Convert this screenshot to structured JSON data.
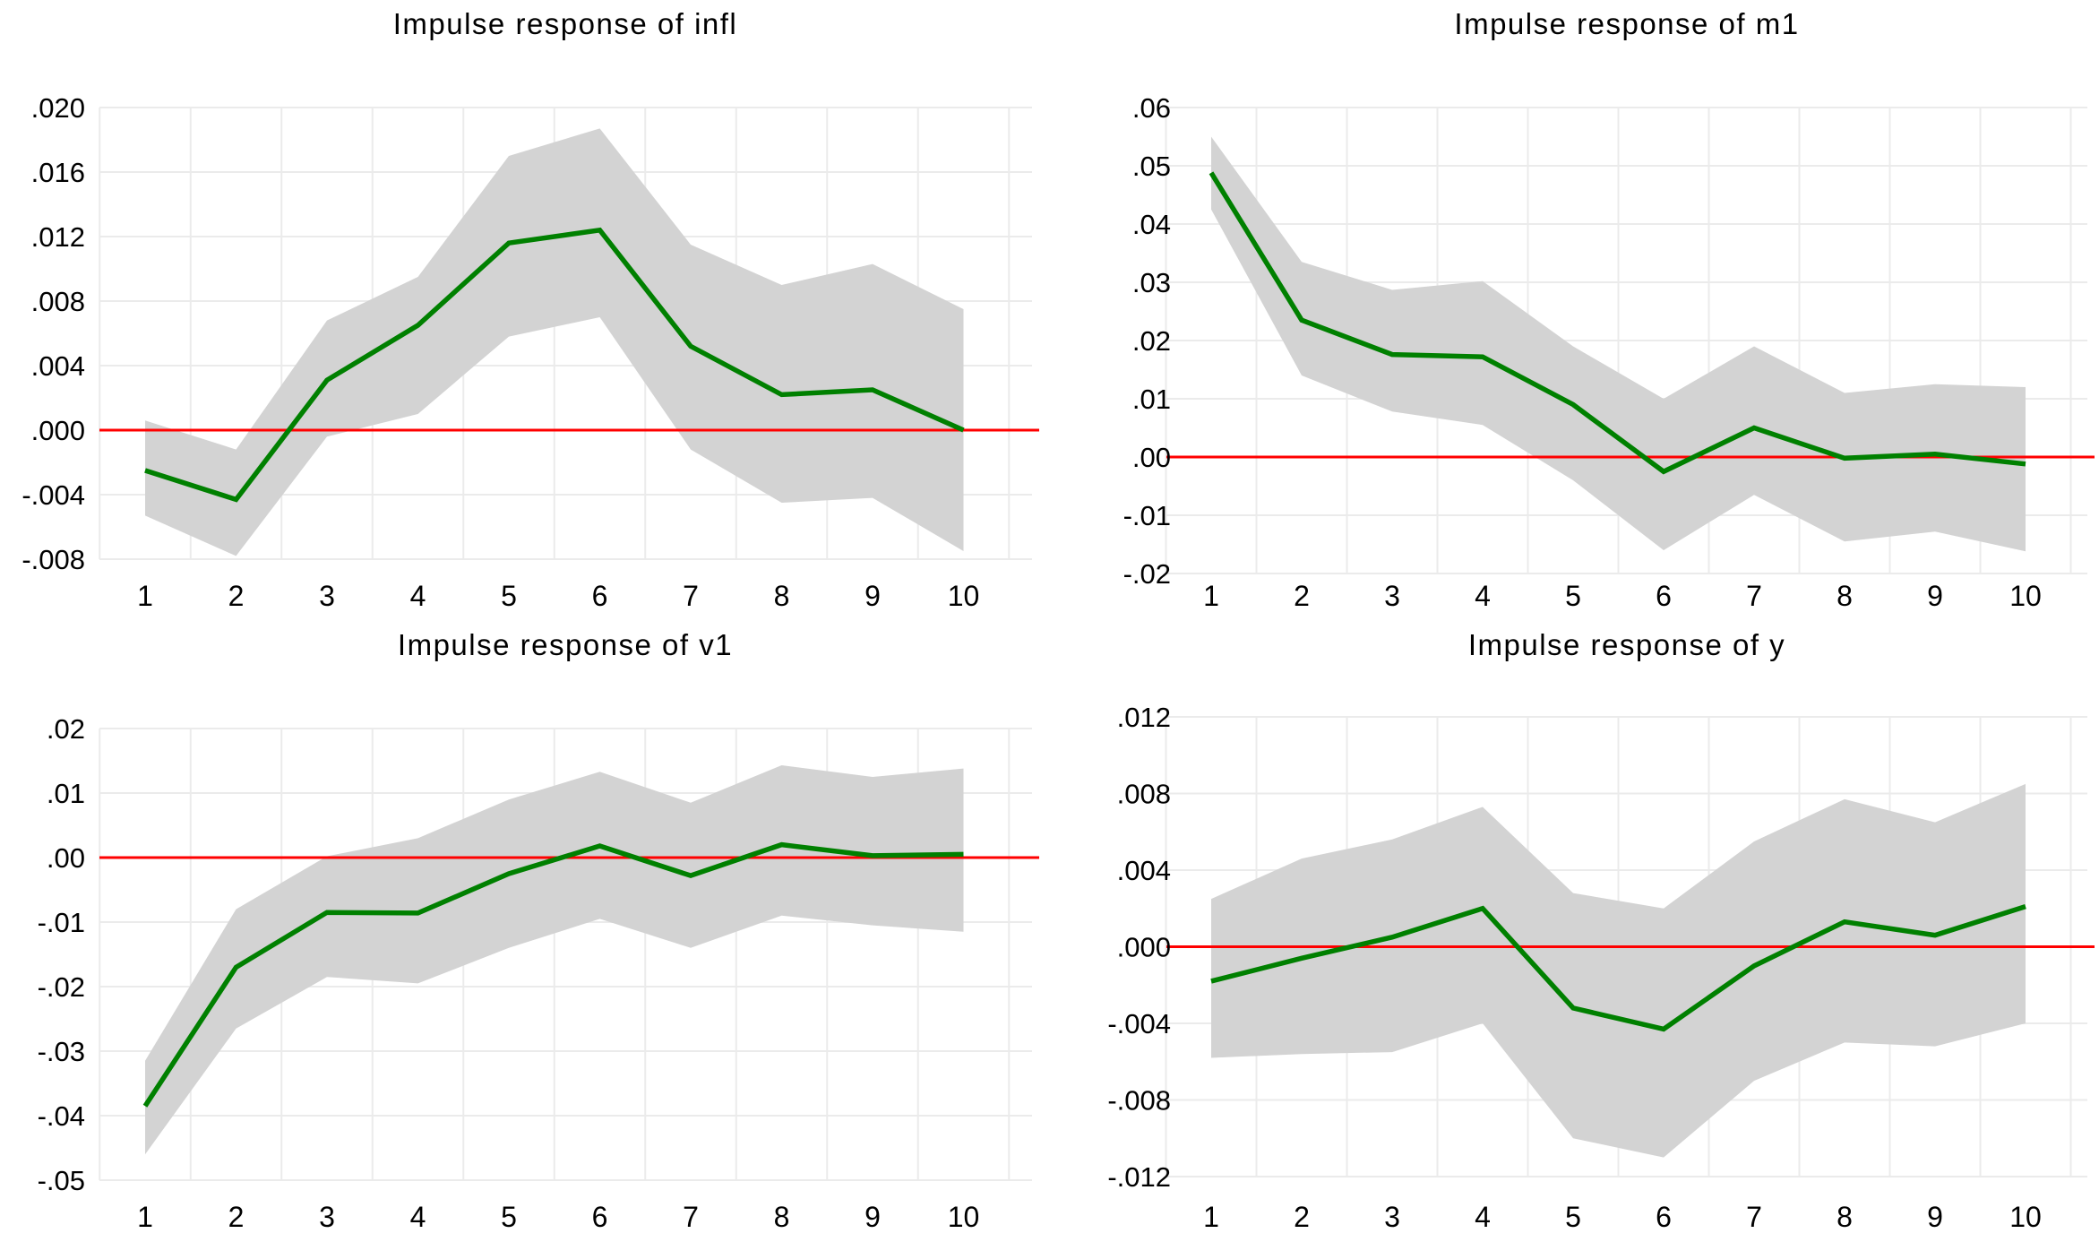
{
  "figure": {
    "kind": "impulse-response-panel",
    "rows": 2,
    "cols": 2,
    "background": "#ffffff"
  },
  "colors": {
    "response_line": "#008000",
    "confidence_band": "#d3d3d3",
    "zero_line": "#ff0000",
    "gridline": "#ebebeb",
    "text": "#000000"
  },
  "chart_data": [
    {
      "type": "line",
      "title": "Impulse response of infl",
      "xlabel": "",
      "ylabel": "",
      "x": [
        1,
        2,
        3,
        4,
        5,
        6,
        7,
        8,
        9,
        10
      ],
      "x_tick_labels": [
        "1",
        "2",
        "3",
        "4",
        "5",
        "6",
        "7",
        "8",
        "9",
        "10"
      ],
      "y_tick_values": [
        0.02,
        0.016,
        0.012,
        0.008,
        0.004,
        0.0,
        -0.004,
        -0.008
      ],
      "y_tick_labels": [
        ".020",
        ".016",
        ".012",
        ".008",
        ".004",
        ".000",
        "-.004",
        "-.008"
      ],
      "ylim": [
        -0.009,
        0.021
      ],
      "xlim": [
        1,
        10
      ],
      "grid": true,
      "legend": "none",
      "zero_line": true,
      "series": [
        {
          "name": "irf",
          "role": "response",
          "color": "#008000",
          "values": [
            -0.0025,
            -0.0043,
            0.0031,
            0.0065,
            0.0116,
            0.0124,
            0.0052,
            0.0022,
            0.0025,
            0.0
          ]
        },
        {
          "name": "ci_upper",
          "role": "band-upper",
          "color": "#d3d3d3",
          "values": [
            0.0006,
            -0.0012,
            0.0068,
            0.0095,
            0.017,
            0.0187,
            0.0115,
            0.009,
            0.0103,
            0.0075
          ]
        },
        {
          "name": "ci_lower",
          "role": "band-lower",
          "color": "#d3d3d3",
          "values": [
            -0.0053,
            -0.0078,
            -0.0004,
            0.001,
            0.0058,
            0.007,
            -0.0012,
            -0.0045,
            -0.0042,
            -0.0075
          ]
        }
      ]
    },
    {
      "type": "line",
      "title": "Impulse response of m1",
      "xlabel": "",
      "ylabel": "",
      "x": [
        1,
        2,
        3,
        4,
        5,
        6,
        7,
        8,
        9,
        10
      ],
      "x_tick_labels": [
        "1",
        "2",
        "3",
        "4",
        "5",
        "6",
        "7",
        "8",
        "9",
        "10"
      ],
      "y_tick_values": [
        0.06,
        0.05,
        0.04,
        0.03,
        0.02,
        0.01,
        0.0,
        -0.01,
        -0.02
      ],
      "y_tick_labels": [
        ".06",
        ".05",
        ".04",
        ".03",
        ".02",
        ".01",
        ".00",
        "-.01",
        "-.02"
      ],
      "ylim": [
        -0.022,
        0.062
      ],
      "xlim": [
        1,
        10
      ],
      "grid": true,
      "legend": "none",
      "zero_line": true,
      "series": [
        {
          "name": "irf",
          "role": "response",
          "color": "#008000",
          "values": [
            0.0488,
            0.0235,
            0.0176,
            0.0172,
            0.009,
            -0.0025,
            0.005,
            -0.0002,
            0.0005,
            -0.0012
          ]
        },
        {
          "name": "ci_upper",
          "role": "band-upper",
          "color": "#d3d3d3",
          "values": [
            0.055,
            0.0335,
            0.0287,
            0.0302,
            0.019,
            0.01,
            0.019,
            0.011,
            0.0125,
            0.012
          ]
        },
        {
          "name": "ci_lower",
          "role": "band-lower",
          "color": "#d3d3d3",
          "values": [
            0.0425,
            0.014,
            0.0078,
            0.0055,
            -0.004,
            -0.016,
            -0.0065,
            -0.0145,
            -0.0128,
            -0.0162
          ]
        }
      ]
    },
    {
      "type": "line",
      "title": "Impulse response of v1",
      "xlabel": "",
      "ylabel": "",
      "x": [
        1,
        2,
        3,
        4,
        5,
        6,
        7,
        8,
        9,
        10
      ],
      "x_tick_labels": [
        "1",
        "2",
        "3",
        "4",
        "5",
        "6",
        "7",
        "8",
        "9",
        "10"
      ],
      "y_tick_values": [
        0.02,
        0.01,
        0.0,
        -0.01,
        -0.02,
        -0.03,
        -0.04,
        -0.05
      ],
      "y_tick_labels": [
        ".02",
        ".01",
        ".00",
        "-.01",
        "-.02",
        "-.03",
        "-.04",
        "-.05"
      ],
      "ylim": [
        -0.052,
        0.022
      ],
      "xlim": [
        1,
        10
      ],
      "grid": true,
      "legend": "none",
      "zero_line": true,
      "series": [
        {
          "name": "irf",
          "role": "response",
          "color": "#008000",
          "values": [
            -0.0385,
            -0.017,
            -0.0085,
            -0.0086,
            -0.0025,
            0.0018,
            -0.0028,
            0.002,
            0.0003,
            0.0005
          ]
        },
        {
          "name": "ci_upper",
          "role": "band-upper",
          "color": "#d3d3d3",
          "values": [
            -0.0315,
            -0.008,
            0.0002,
            0.003,
            0.009,
            0.0133,
            0.0085,
            0.0143,
            0.0125,
            0.0138
          ]
        },
        {
          "name": "ci_lower",
          "role": "band-lower",
          "color": "#d3d3d3",
          "values": [
            -0.046,
            -0.0265,
            -0.0185,
            -0.0195,
            -0.014,
            -0.0095,
            -0.014,
            -0.009,
            -0.0105,
            -0.0115
          ]
        }
      ]
    },
    {
      "type": "line",
      "title": "Impulse response of y",
      "xlabel": "",
      "ylabel": "",
      "x": [
        1,
        2,
        3,
        4,
        5,
        6,
        7,
        8,
        9,
        10
      ],
      "x_tick_labels": [
        "1",
        "2",
        "3",
        "4",
        "5",
        "6",
        "7",
        "8",
        "9",
        "10"
      ],
      "y_tick_values": [
        0.012,
        0.008,
        0.004,
        0.0,
        -0.004,
        -0.008,
        -0.012
      ],
      "y_tick_labels": [
        ".012",
        ".008",
        ".004",
        ".000",
        "-.004",
        "-.008",
        "-.012"
      ],
      "ylim": [
        -0.0125,
        0.0125
      ],
      "xlim": [
        1,
        10
      ],
      "grid": true,
      "legend": "none",
      "zero_line": true,
      "series": [
        {
          "name": "irf",
          "role": "response",
          "color": "#008000",
          "values": [
            -0.0018,
            -0.0006,
            0.0005,
            0.002,
            -0.0032,
            -0.0043,
            -0.001,
            0.0013,
            0.0006,
            0.0021
          ]
        },
        {
          "name": "ci_upper",
          "role": "band-upper",
          "color": "#d3d3d3",
          "values": [
            0.0025,
            0.0046,
            0.0056,
            0.0073,
            0.0028,
            0.002,
            0.0055,
            0.0077,
            0.0065,
            0.0085
          ]
        },
        {
          "name": "ci_lower",
          "role": "band-lower",
          "color": "#d3d3d3",
          "values": [
            -0.0058,
            -0.0056,
            -0.0055,
            -0.004,
            -0.01,
            -0.011,
            -0.007,
            -0.005,
            -0.0052,
            -0.004
          ]
        }
      ]
    }
  ]
}
